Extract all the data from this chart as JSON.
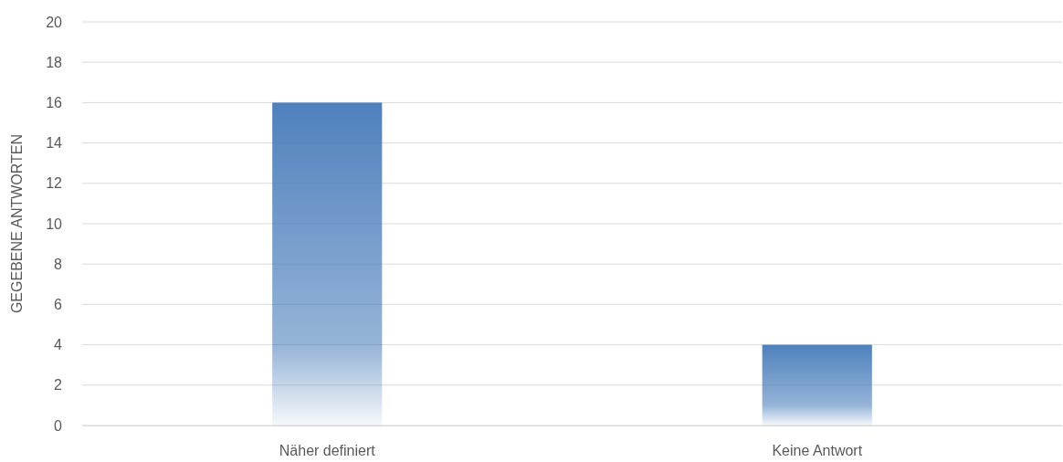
{
  "chart_data": {
    "type": "bar",
    "ylabel": "GEGEBENE ANTWORTEN",
    "categories": [
      "Näher definiert",
      "Keine Antwort"
    ],
    "values": [
      16,
      4
    ],
    "color": "#4f81bd",
    "ylim": [
      0,
      20
    ],
    "yticks": [
      0,
      2,
      4,
      6,
      8,
      10,
      12,
      14,
      16,
      18,
      20
    ],
    "grid": "y"
  }
}
